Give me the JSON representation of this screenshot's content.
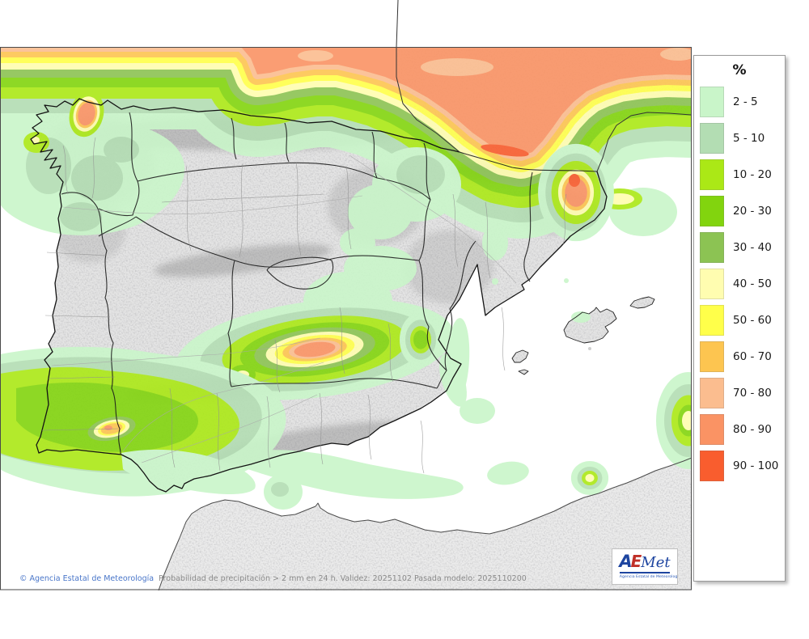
{
  "legend": {
    "title": "%",
    "items": [
      {
        "label": "2 - 5",
        "color": "#c9f5c9"
      },
      {
        "label": "5 - 10",
        "color": "#b3ddb3"
      },
      {
        "label": "10 - 20",
        "color": "#abe816"
      },
      {
        "label": "20 - 30",
        "color": "#82d40e"
      },
      {
        "label": "30 - 40",
        "color": "#8cc353"
      },
      {
        "label": "40 - 50",
        "color": "#fffdb0"
      },
      {
        "label": "50 - 60",
        "color": "#ffff4a"
      },
      {
        "label": "60 - 70",
        "color": "#fdc550"
      },
      {
        "label": "70 - 80",
        "color": "#fbbd8f"
      },
      {
        "label": "80 - 90",
        "color": "#fa9364"
      },
      {
        "label": "90 - 100",
        "color": "#f95d2e"
      }
    ]
  },
  "footer": {
    "copyright": "© Agencia Estatal de Meteorología",
    "description": "Probabilidad de precipitación > 2 mm en 24 h. Validez: 20251102 Pasada modelo: 2025110200"
  },
  "logo": {
    "letter_a": "A",
    "letter_e": "E",
    "letter_met": "Met",
    "subtitle": "Agencia Estatal de Meteorología"
  }
}
